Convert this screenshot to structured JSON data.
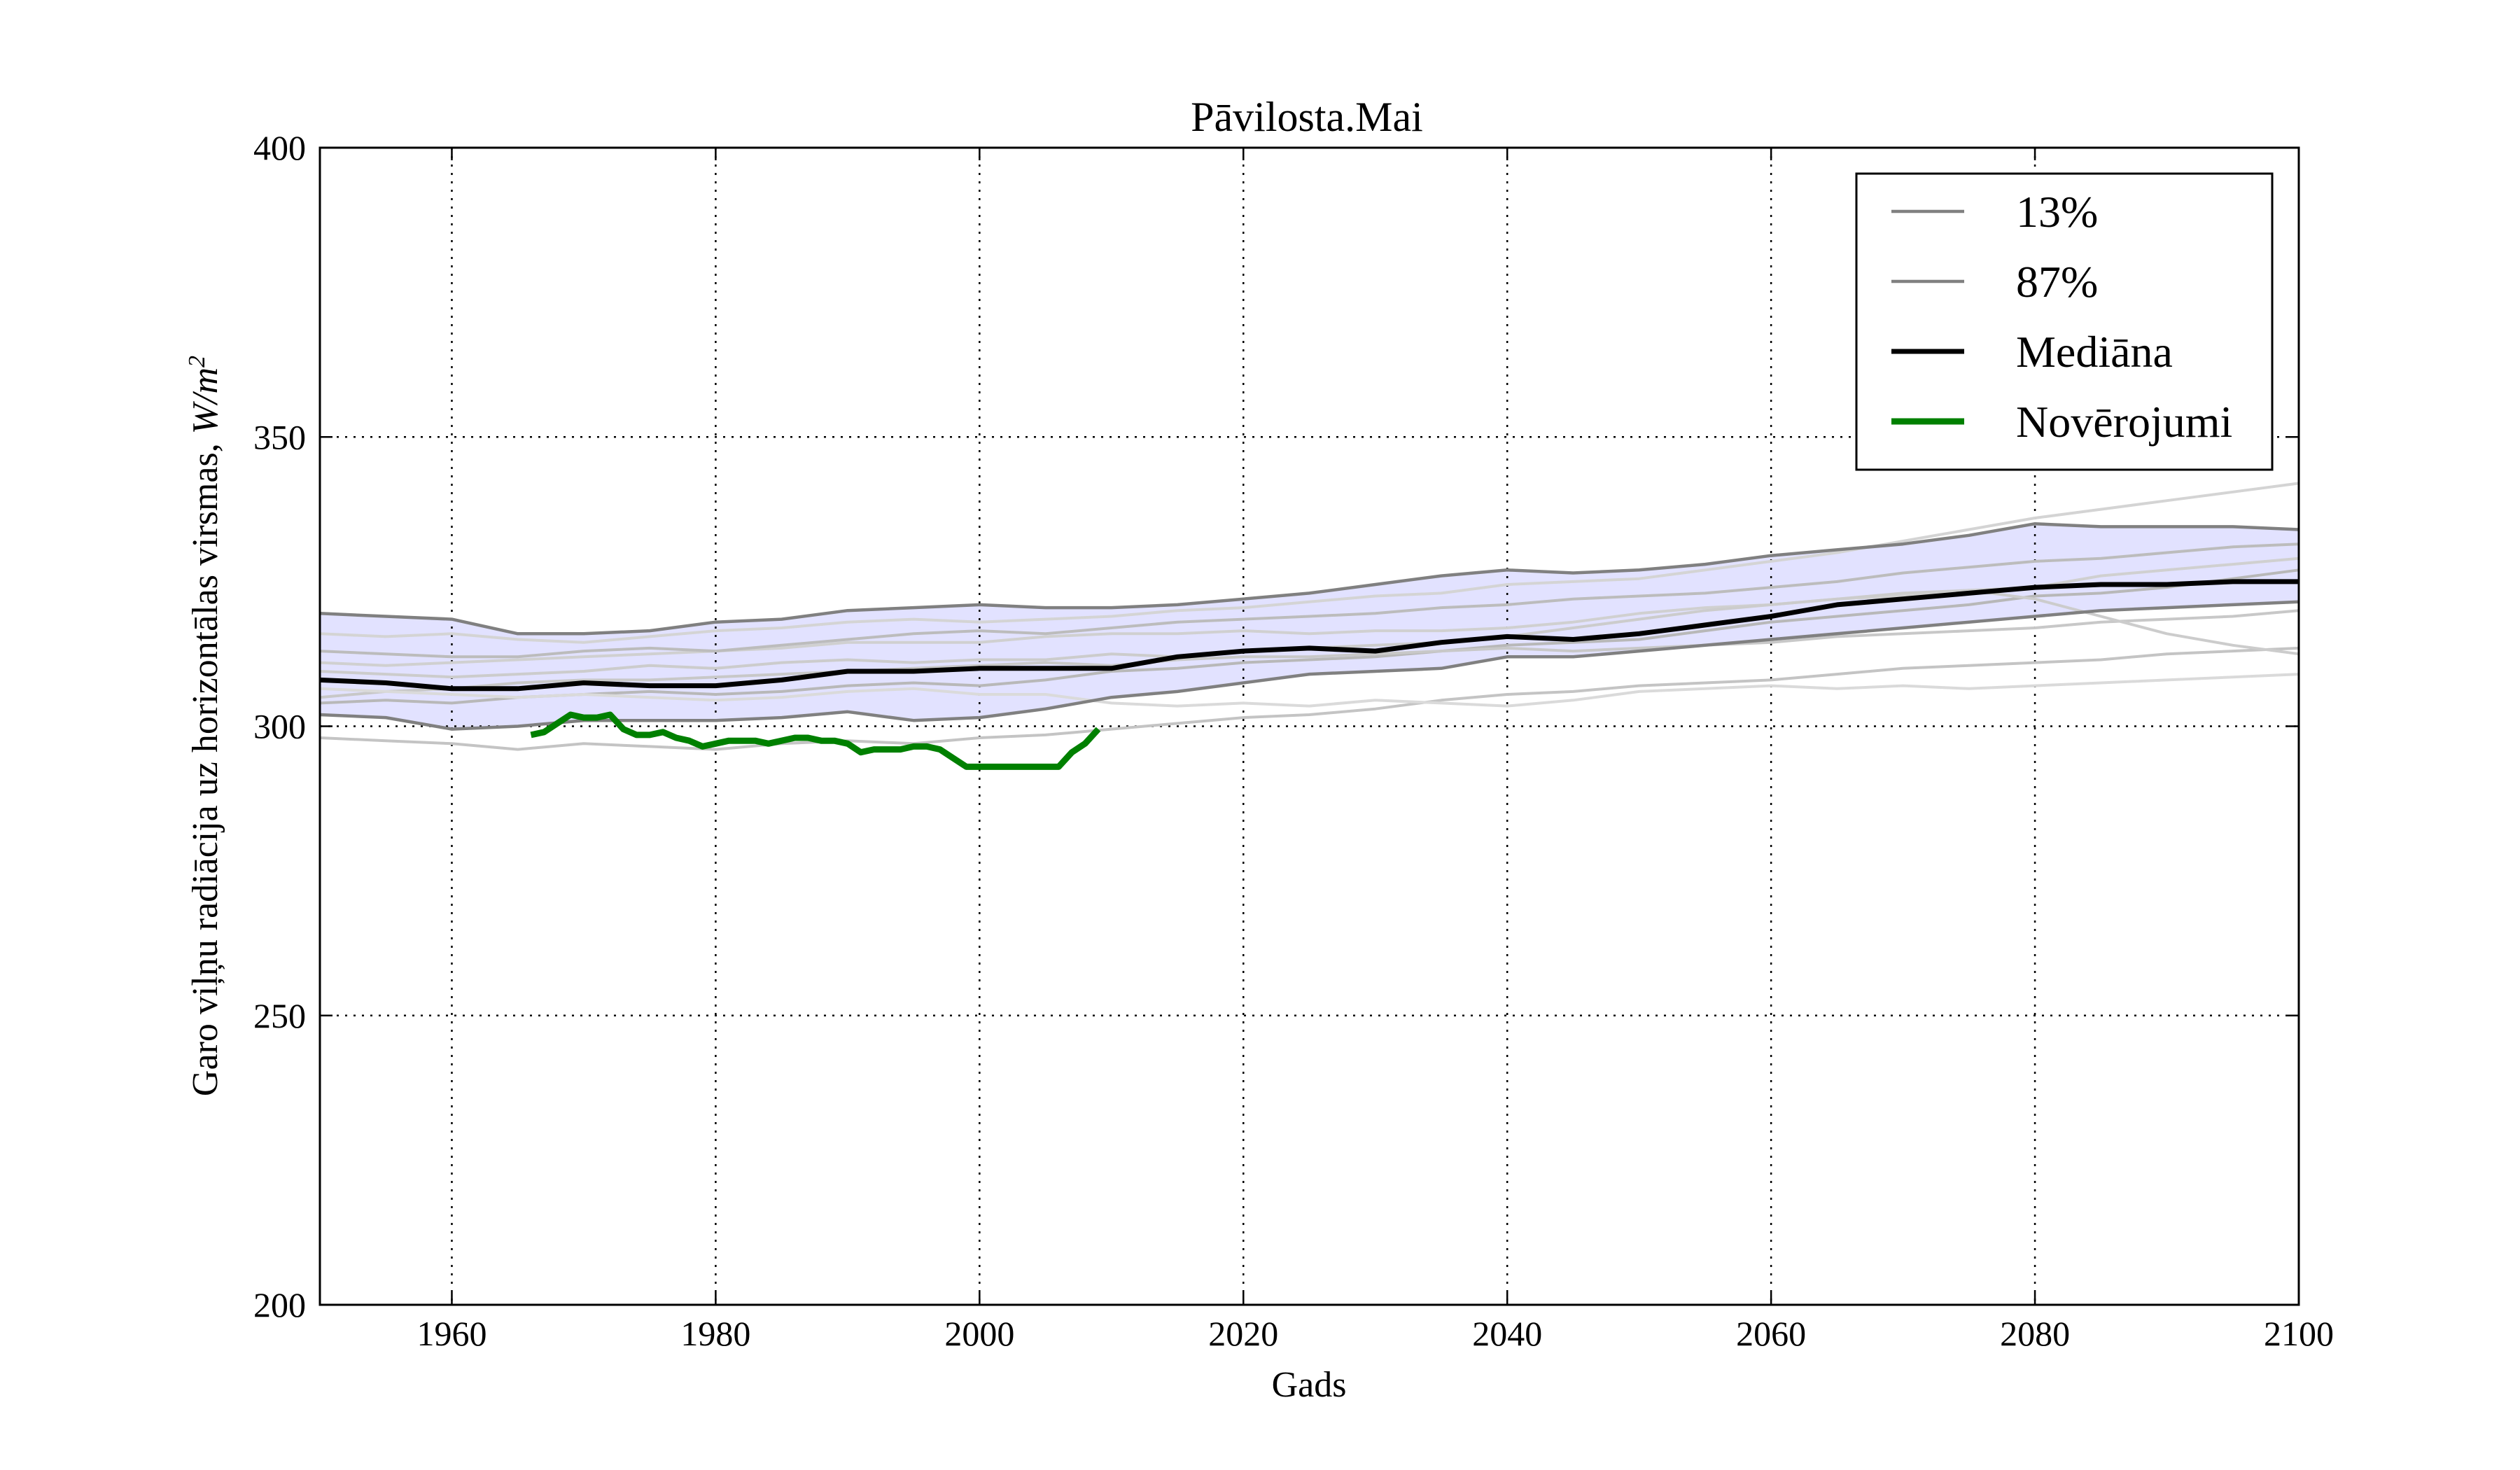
{
  "chart_data": {
    "type": "line",
    "title": "Pāvilosta.Mai",
    "xlabel": "Gads",
    "ylabel": "Garo viļņu radiācija uz horizontālas virsmas, W/m²",
    "ylabel_parts": {
      "text": "Garo viļņu radiācija uz horizontālas virsmas, ",
      "unit_base": "W/m",
      "unit_sup": "2"
    },
    "xlim": [
      1950,
      2100
    ],
    "ylim": [
      200,
      400
    ],
    "x_ticks": [
      1960,
      1980,
      2000,
      2020,
      2040,
      2060,
      2080,
      2100
    ],
    "y_ticks": [
      200,
      250,
      300,
      350,
      400
    ],
    "grid": true,
    "legend": {
      "placement": "top-right",
      "entries": [
        {
          "label": "13%",
          "color": "#808080"
        },
        {
          "label": "87%",
          "color": "#808080"
        },
        {
          "label": "Mediāna",
          "color": "#000000"
        },
        {
          "label": "Novērojumi",
          "color": "#008000"
        }
      ]
    },
    "band_color": "#e2e2ff",
    "series": [
      {
        "name": "13%",
        "color": "#808080",
        "x": [
          1950,
          1955,
          1960,
          1965,
          1970,
          1975,
          1980,
          1985,
          1990,
          1995,
          2000,
          2005,
          2010,
          2015,
          2020,
          2025,
          2030,
          2035,
          2040,
          2045,
          2050,
          2055,
          2060,
          2065,
          2070,
          2075,
          2080,
          2085,
          2090,
          2095,
          2100
        ],
        "y": [
          302,
          301.5,
          299.5,
          300,
          301,
          301,
          301,
          301.5,
          302.5,
          301,
          301.5,
          303,
          305,
          306,
          307.5,
          309,
          309.5,
          310,
          312,
          312,
          313,
          314,
          315,
          316,
          317,
          318,
          319,
          320,
          320.5,
          321,
          321.5
        ]
      },
      {
        "name": "87%",
        "color": "#808080",
        "x": [
          1950,
          1955,
          1960,
          1965,
          1970,
          1975,
          1980,
          1985,
          1990,
          1995,
          2000,
          2005,
          2010,
          2015,
          2020,
          2025,
          2030,
          2035,
          2040,
          2045,
          2050,
          2055,
          2060,
          2065,
          2070,
          2075,
          2080,
          2085,
          2090,
          2095,
          2100
        ],
        "y": [
          319.5,
          319,
          318.5,
          316,
          316,
          316.5,
          318,
          318.5,
          320,
          320.5,
          321,
          320.5,
          320.5,
          321,
          322,
          323,
          324.5,
          326,
          327,
          326.5,
          327,
          328,
          329.5,
          330.5,
          331.5,
          333,
          335,
          334.5,
          334.5,
          334.5,
          334
        ]
      },
      {
        "name": "Mediāna",
        "color": "#000000",
        "x": [
          1950,
          1955,
          1960,
          1965,
          1970,
          1975,
          1980,
          1985,
          1990,
          1995,
          2000,
          2005,
          2010,
          2015,
          2020,
          2025,
          2030,
          2035,
          2040,
          2045,
          2050,
          2055,
          2060,
          2065,
          2070,
          2075,
          2080,
          2085,
          2090,
          2095,
          2100
        ],
        "y": [
          308,
          307.5,
          306.5,
          306.5,
          307.5,
          307,
          307,
          308,
          309.5,
          309.5,
          310,
          310,
          310,
          312,
          313,
          313.5,
          313,
          314.5,
          315.5,
          315,
          316,
          317.5,
          319,
          321,
          322,
          323,
          324,
          324.5,
          324.5,
          325,
          325
        ]
      },
      {
        "name": "Novērojumi",
        "color": "#008000",
        "x": [
          1966,
          1967,
          1968,
          1969,
          1970,
          1971,
          1972,
          1973,
          1974,
          1975,
          1976,
          1977,
          1978,
          1979,
          1980,
          1981,
          1982,
          1983,
          1984,
          1985,
          1986,
          1987,
          1988,
          1989,
          1990,
          1991,
          1992,
          1993,
          1994,
          1995,
          1996,
          1997,
          1998,
          1999,
          2000,
          2001,
          2002,
          2003,
          2004,
          2005,
          2006,
          2007,
          2008,
          2009
        ],
        "y": [
          298.5,
          299,
          300.5,
          302,
          301.5,
          301.5,
          302,
          299.5,
          298.5,
          298.5,
          299,
          298,
          297.5,
          296.5,
          297,
          297.5,
          297.5,
          297.5,
          297,
          297.5,
          298,
          298,
          297.5,
          297.5,
          297,
          295.5,
          296,
          296,
          296,
          296.5,
          296.5,
          296,
          294.5,
          293,
          293,
          293,
          293,
          293,
          293,
          293,
          293,
          295.5,
          297,
          299.5
        ]
      }
    ],
    "ensemble_members": [
      {
        "color": "#c4c4c4",
        "y": [
          298,
          297.5,
          297,
          296,
          297,
          296.5,
          296,
          297,
          297.5,
          297,
          298,
          298.5,
          299.5,
          300.5,
          301.5,
          302,
          303,
          304.5,
          305.5,
          306,
          307,
          307.5,
          308,
          309,
          310,
          310.5,
          311,
          311.5,
          312.5,
          313,
          313.5
        ]
      },
      {
        "color": "#d0d0d0",
        "y": [
          311,
          310.5,
          311,
          311.5,
          312,
          312.5,
          313,
          313.5,
          314.5,
          314.5,
          314.5,
          315.5,
          316,
          316,
          316.5,
          316,
          316.5,
          316.5,
          317,
          318,
          319.5,
          320.5,
          321,
          322,
          322.5,
          323.5,
          324,
          326,
          327,
          328,
          329
        ]
      },
      {
        "color": "#b8b8b8",
        "y": [
          304,
          304.5,
          304,
          305,
          305.5,
          306,
          305.5,
          306,
          307,
          307.5,
          307,
          308,
          309.5,
          310,
          311,
          311.5,
          312,
          313,
          314,
          314.5,
          315,
          316.5,
          318,
          319,
          320,
          321,
          322.5,
          323,
          324,
          325.5,
          327
        ]
      },
      {
        "color": "#d4d4d4",
        "y": [
          316,
          315.5,
          316,
          315,
          314.5,
          315.5,
          316.5,
          317,
          318,
          318.5,
          318,
          318.5,
          319,
          320,
          320.5,
          321.5,
          322.5,
          323,
          324.5,
          325,
          325.5,
          327,
          328.5,
          330,
          332,
          334,
          336,
          337.5,
          339,
          340.5,
          342
        ]
      },
      {
        "color": "#c8c8c8",
        "y": [
          305,
          306,
          306.5,
          307.5,
          308,
          308,
          308.5,
          309,
          309.5,
          310,
          310.5,
          311,
          310.5,
          311.5,
          312,
          312,
          312.5,
          313,
          313.5,
          313,
          313.5,
          314,
          314.5,
          315.5,
          316,
          316.5,
          317,
          318,
          318.5,
          319,
          320
        ]
      },
      {
        "color": "#dadada",
        "y": [
          306.5,
          306,
          305.5,
          305,
          305.5,
          305,
          304.5,
          305,
          306,
          306.5,
          305.5,
          305.5,
          304,
          303.5,
          304,
          303.5,
          304.5,
          304,
          303.5,
          304.5,
          306,
          306.5,
          307,
          306.5,
          307,
          306.5,
          307,
          307.5,
          308,
          308.5,
          309
        ]
      },
      {
        "color": "#bcbcbc",
        "y": [
          313,
          312.5,
          312,
          312,
          313,
          313.5,
          313,
          314,
          315,
          316,
          316.5,
          316,
          317,
          318,
          318.5,
          319,
          319.5,
          320.5,
          321,
          322,
          322.5,
          323,
          324,
          325,
          326.5,
          327.5,
          328.5,
          329,
          330,
          331,
          331.5
        ]
      },
      {
        "color": "#cccccc",
        "y": [
          309.5,
          309,
          308.5,
          309,
          309.5,
          310.5,
          310,
          311,
          311.5,
          311,
          311.5,
          311.5,
          312.5,
          312,
          313,
          313.5,
          314,
          314.5,
          315.5,
          317,
          318.5,
          320,
          321,
          322,
          323,
          323.5,
          322,
          319,
          316,
          314,
          312.5
        ]
      }
    ]
  }
}
